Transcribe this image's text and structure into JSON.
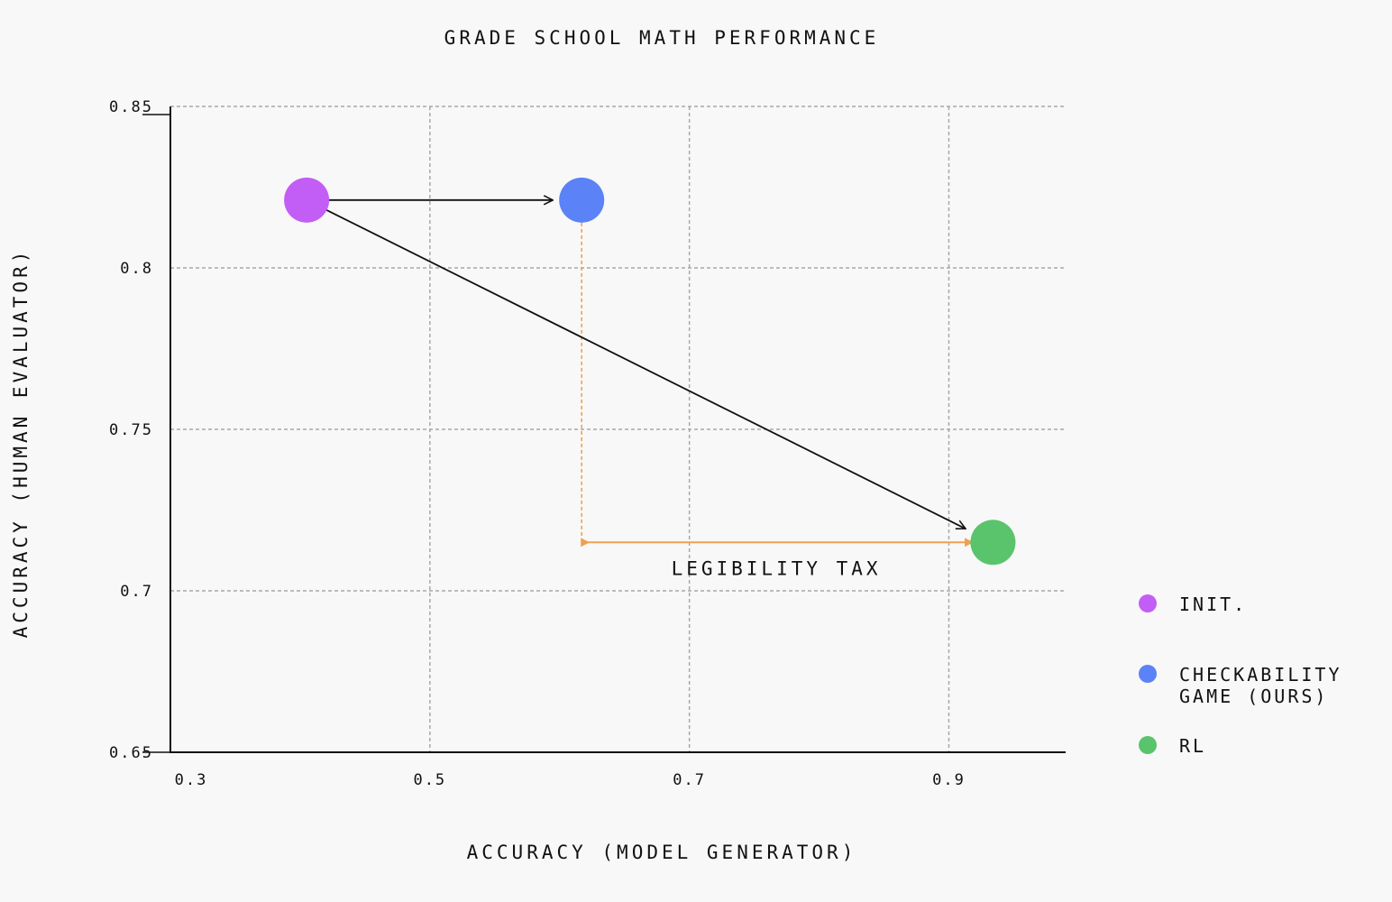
{
  "chart_data": {
    "type": "scatter",
    "title": "GRADE SCHOOL MATH PERFORMANCE",
    "xlabel": "ACCURACY (MODEL GENERATOR)",
    "ylabel": "ACCURACY (HUMAN EVALUATOR)",
    "xlim": [
      0.3,
      0.99
    ],
    "ylim": [
      0.65,
      0.85
    ],
    "xticks": [
      "0.3",
      "0.5",
      "0.7",
      "0.9"
    ],
    "yticks": [
      "0.85",
      "0.8",
      "0.75",
      "0.7",
      "0.65"
    ],
    "grid": true,
    "legend_position": "right",
    "series": [
      {
        "name": "INIT.",
        "color": "#c25ef5",
        "x": 0.405,
        "y": 0.821
      },
      {
        "name": "CHECKABILITY GAME (OURS)",
        "color": "#5b82f7",
        "x": 0.617,
        "y": 0.821
      },
      {
        "name": "RL",
        "color": "#59c46c",
        "x": 0.934,
        "y": 0.715
      }
    ],
    "annotation": {
      "text": "LEGIBILITY TAX",
      "color": "#f0a050",
      "x_from": 0.617,
      "x_to": 0.917,
      "y": 0.715,
      "vertical_from_y": 0.821
    }
  },
  "legend": {
    "items": [
      {
        "lines": [
          "INIT."
        ],
        "color": "#c25ef5"
      },
      {
        "lines": [
          "CHECKABILITY",
          "GAME (OURS)"
        ],
        "color": "#5b82f7"
      },
      {
        "lines": [
          "RL"
        ],
        "color": "#59c46c"
      }
    ]
  }
}
